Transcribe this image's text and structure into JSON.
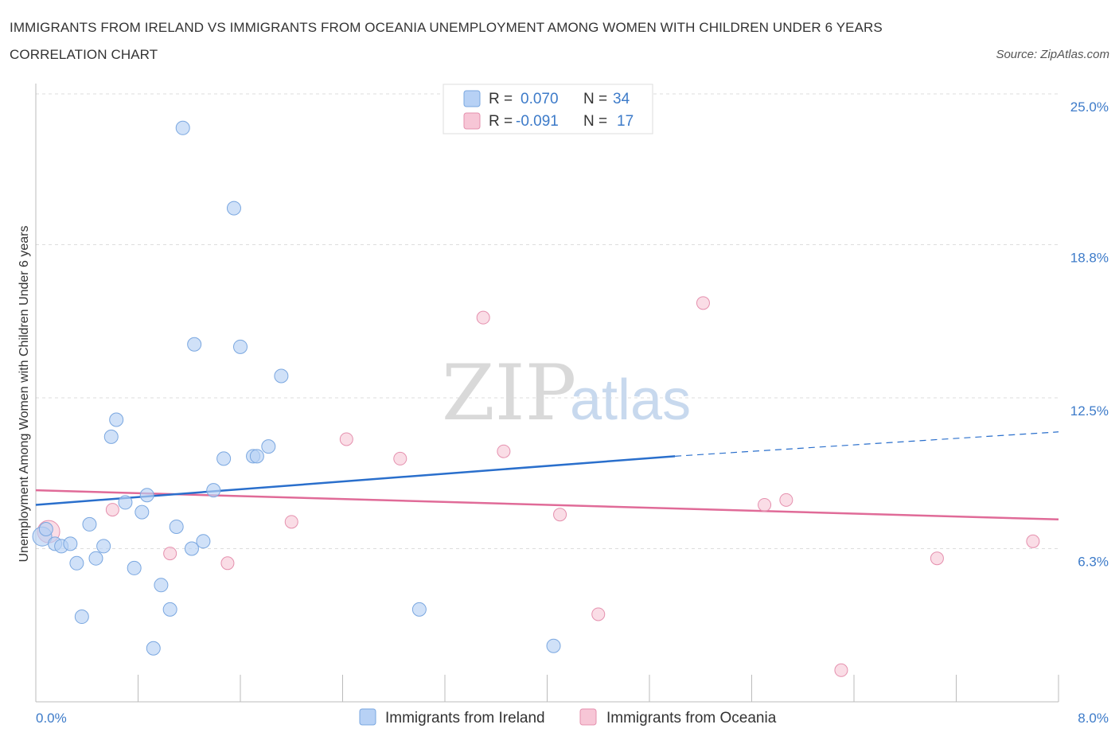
{
  "header": {
    "title": "IMMIGRANTS FROM IRELAND VS IMMIGRANTS FROM OCEANIA UNEMPLOYMENT AMONG WOMEN WITH CHILDREN UNDER 6 YEARS CORRELATION CHART",
    "source": "Source: ZipAtlas.com"
  },
  "watermark": {
    "zip": "ZIP",
    "atlas": "atlas"
  },
  "colors": {
    "ireland_fill": "#b7d1f5",
    "ireland_stroke": "#7aa7e0",
    "ireland_line": "#2a6fcc",
    "oceania_fill": "#f7c6d6",
    "oceania_stroke": "#e590ae",
    "oceania_line": "#e06b98",
    "axis_label": "#3d7bc9",
    "grid": "#dddddd"
  },
  "legend": {
    "rows": [
      {
        "r_label": "R =",
        "r_value": "0.070",
        "n_label": "N =",
        "n_value": "34"
      },
      {
        "r_label": "R =",
        "r_value": "-0.091",
        "n_label": "N =",
        "n_value": "17"
      }
    ]
  },
  "chart_data": {
    "type": "scatter",
    "title": "IMMIGRANTS FROM IRELAND VS IMMIGRANTS FROM OCEANIA UNEMPLOYMENT AMONG WOMEN WITH CHILDREN UNDER 6 YEARS CORRELATION CHART",
    "xlabel": "",
    "ylabel": "Unemployment Among Women with Children Under 6 years",
    "xlim": [
      0,
      8
    ],
    "ylim": [
      0,
      25
    ],
    "x_tick_labels": [
      "0.0%",
      "8.0%"
    ],
    "y_ticks": [
      6.3,
      12.5,
      18.8,
      25.0
    ],
    "y_tick_labels": [
      "6.3%",
      "12.5%",
      "18.8%",
      "25.0%"
    ],
    "grid": true,
    "legend_position": "bottom",
    "series": [
      {
        "name": "Immigrants from Ireland",
        "r": 0.07,
        "n": 34,
        "points": [
          [
            0.05,
            6.8
          ],
          [
            0.08,
            7.1
          ],
          [
            0.15,
            6.5
          ],
          [
            0.2,
            6.4
          ],
          [
            0.27,
            6.5
          ],
          [
            0.32,
            5.7
          ],
          [
            0.36,
            3.5
          ],
          [
            0.42,
            7.3
          ],
          [
            0.47,
            5.9
          ],
          [
            0.53,
            6.4
          ],
          [
            0.59,
            10.9
          ],
          [
            0.63,
            11.6
          ],
          [
            0.7,
            8.2
          ],
          [
            0.77,
            5.5
          ],
          [
            0.83,
            7.8
          ],
          [
            0.87,
            8.5
          ],
          [
            0.92,
            2.2
          ],
          [
            0.98,
            4.8
          ],
          [
            1.05,
            3.8
          ],
          [
            1.1,
            7.2
          ],
          [
            1.15,
            23.6
          ],
          [
            1.22,
            6.3
          ],
          [
            1.24,
            14.7
          ],
          [
            1.31,
            6.6
          ],
          [
            1.39,
            8.7
          ],
          [
            1.47,
            10.0
          ],
          [
            1.55,
            20.3
          ],
          [
            1.6,
            14.6
          ],
          [
            1.7,
            10.1
          ],
          [
            1.73,
            10.1
          ],
          [
            1.82,
            10.5
          ],
          [
            1.92,
            13.4
          ],
          [
            3.0,
            3.8
          ],
          [
            4.05,
            2.3
          ]
        ],
        "trend": {
          "x": [
            0,
            5.0
          ],
          "y": [
            8.1,
            10.1
          ]
        },
        "trend_dashed": {
          "x": [
            5.0,
            8.0
          ],
          "y": [
            10.1,
            11.1
          ]
        }
      },
      {
        "name": "Immigrants from Oceania",
        "r": -0.091,
        "n": 17,
        "points": [
          [
            0.1,
            7.0
          ],
          [
            0.6,
            7.9
          ],
          [
            1.05,
            6.1
          ],
          [
            1.5,
            5.7
          ],
          [
            2.0,
            7.4
          ],
          [
            2.43,
            10.8
          ],
          [
            2.85,
            10.0
          ],
          [
            3.5,
            15.8
          ],
          [
            3.66,
            10.3
          ],
          [
            4.1,
            7.7
          ],
          [
            4.4,
            3.6
          ],
          [
            5.22,
            16.4
          ],
          [
            5.7,
            8.1
          ],
          [
            5.87,
            8.3
          ],
          [
            7.05,
            5.9
          ],
          [
            7.8,
            6.6
          ],
          [
            6.3,
            1.3
          ]
        ],
        "trend": {
          "x": [
            0,
            8.0
          ],
          "y": [
            8.7,
            7.5
          ]
        }
      }
    ]
  }
}
